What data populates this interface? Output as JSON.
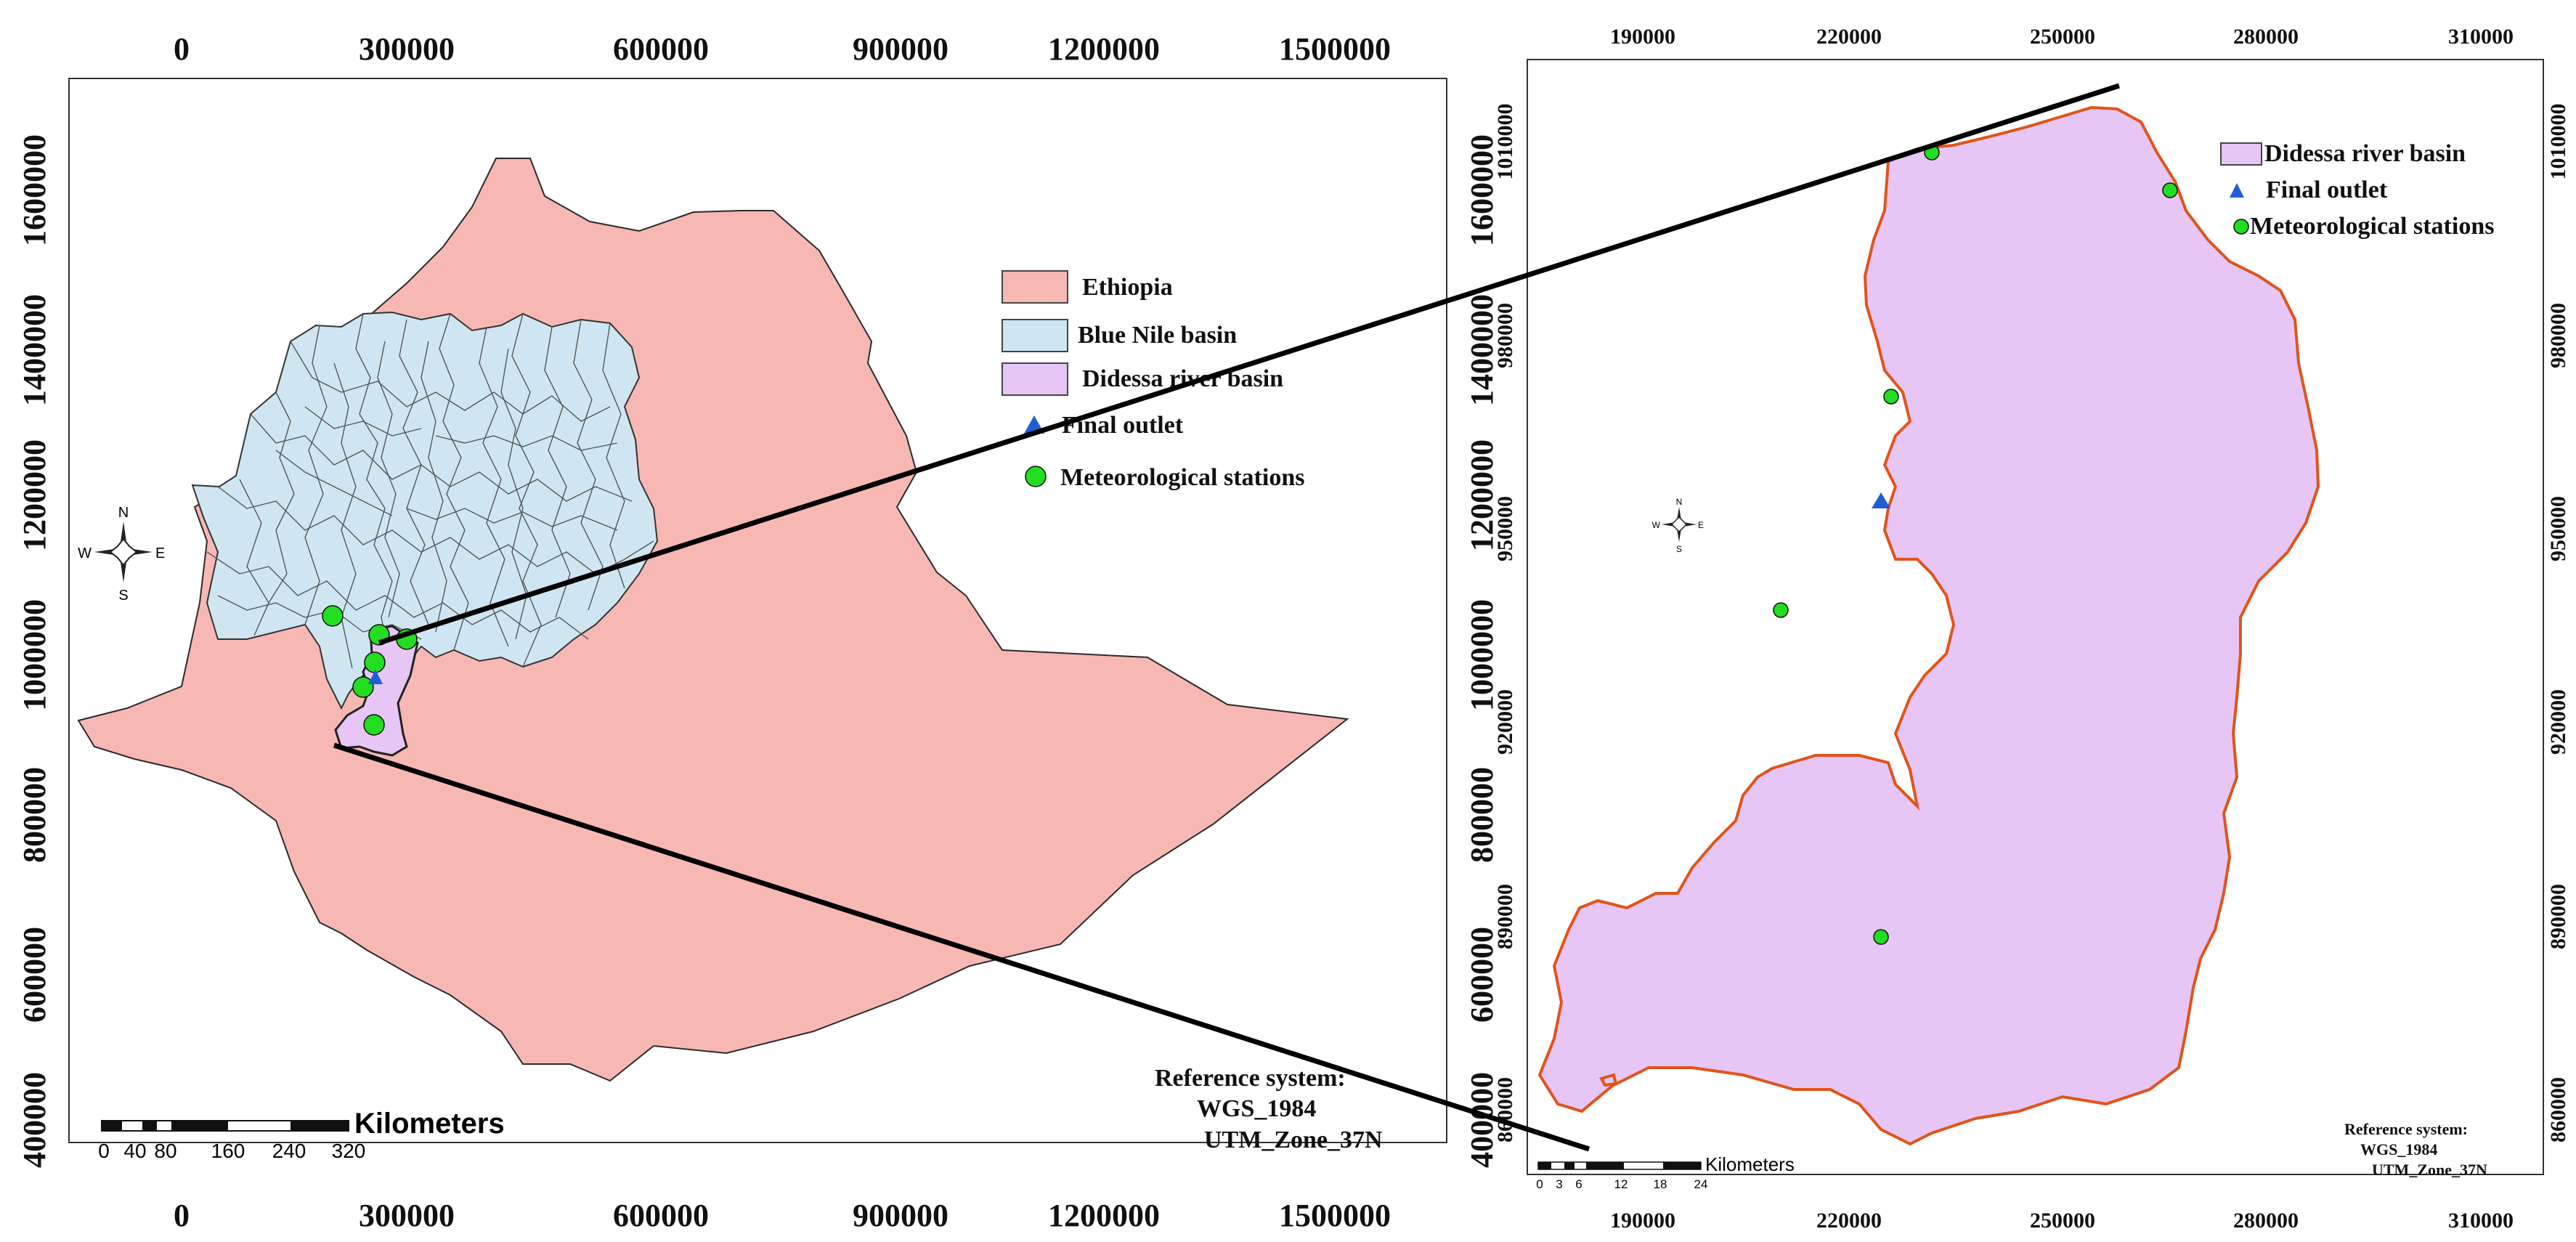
{
  "left_map": {
    "top_ticks": [
      "0",
      "300000",
      "600000",
      "900000",
      "1200000",
      "1500000"
    ],
    "bottom_ticks": [
      "0",
      "300000",
      "600000",
      "900000",
      "1200000",
      "1500000"
    ],
    "left_ticks": [
      "1600000",
      "1400000",
      "1200000",
      "1000000",
      "800000",
      "600000",
      "400000"
    ],
    "right_ticks": [
      "1600000",
      "1400000",
      "1200000",
      "1000000",
      "800000",
      "600000",
      "400000"
    ],
    "legend": [
      {
        "label": "Ethiopia",
        "color": "#f7b8b4"
      },
      {
        "label": "Blue Nile basin",
        "color": "#cfe6f2"
      },
      {
        "label": "Didessa river basin",
        "color": "#e7c6f5"
      },
      {
        "label": "Final outlet",
        "color": "#1f5fd6"
      },
      {
        "label": "Meteorological stations",
        "color": "#22dd22"
      }
    ],
    "north_arrow": {
      "n": "N",
      "s": "S",
      "e": "E",
      "w": "W"
    },
    "scale_bar": {
      "unit": "Kilometers",
      "labels": [
        "0",
        "40",
        "80",
        "160",
        "240",
        "320"
      ]
    },
    "reference": [
      "Reference system:",
      "WGS_1984",
      "UTM_Zone_37N"
    ]
  },
  "right_map": {
    "top_ticks": [
      "190000",
      "220000",
      "250000",
      "280000",
      "310000"
    ],
    "bottom_ticks": [
      "190000",
      "220000",
      "250000",
      "280000",
      "310000"
    ],
    "left_ticks": [
      "1010000",
      "980000",
      "950000",
      "920000",
      "890000",
      "860000"
    ],
    "right_ticks": [
      "1010000",
      "980000",
      "950000",
      "920000",
      "890000",
      "860000"
    ],
    "legend": [
      {
        "label": "Didessa river basin",
        "color": "#e7c6f5"
      },
      {
        "label": "Final outlet",
        "color": "#1f5fd6"
      },
      {
        "label": "Meteorological stations",
        "color": "#22dd22"
      }
    ],
    "north_arrow": {
      "n": "N",
      "s": "S",
      "e": "E",
      "w": "W"
    },
    "scale_bar": {
      "unit": "Kilometers",
      "labels": [
        "0",
        "3",
        "6",
        "12",
        "18",
        "24"
      ]
    },
    "reference": [
      "Reference system:",
      "WGS_1984",
      "UTM_Zone_37N"
    ]
  },
  "colors": {
    "ethiopia": "#f7b8b4",
    "blue_nile": "#cfe6f2",
    "didessa": "#e7c6f5",
    "outline": "#e0541a",
    "station": "#22dd22",
    "outlet": "#1f5fd6"
  }
}
